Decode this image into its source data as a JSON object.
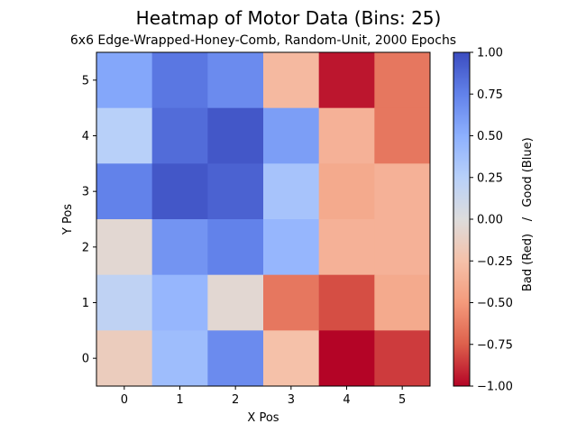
{
  "chart_data": {
    "type": "heatmap",
    "title": "Heatmap of Motor Data (Bins: 25)",
    "subtitle": "6x6 Edge-Wrapped-Honey-Comb, Random-Unit, 2000 Epochs",
    "xlabel": "X Pos",
    "ylabel": "Y Pos",
    "x_ticks": [
      "0",
      "1",
      "2",
      "3",
      "4",
      "5"
    ],
    "y_ticks": [
      "0",
      "1",
      "2",
      "3",
      "4",
      "5"
    ],
    "colorbar": {
      "label_low": "Bad (Red)",
      "label_sep": "/",
      "label_high": "Good (Blue)",
      "range": [
        -1.0,
        1.0
      ],
      "ticks": [
        "−1.00",
        "−0.75",
        "−0.50",
        "−0.25",
        "0.00",
        "0.25",
        "0.50",
        "0.75",
        "1.00"
      ],
      "colormap": "coolwarm_r"
    },
    "grid": false,
    "rows": [
      {
        "y": 5,
        "values": [
          0.55,
          0.8,
          0.7,
          -0.3,
          -0.95,
          -0.65
        ]
      },
      {
        "y": 4,
        "values": [
          0.25,
          0.85,
          0.95,
          0.6,
          -0.35,
          -0.65
        ]
      },
      {
        "y": 3,
        "values": [
          0.75,
          0.95,
          0.9,
          0.35,
          -0.4,
          -0.35
        ]
      },
      {
        "y": 2,
        "values": [
          -0.05,
          0.65,
          0.75,
          0.45,
          -0.35,
          -0.35
        ]
      },
      {
        "y": 1,
        "values": [
          0.2,
          0.45,
          -0.05,
          -0.65,
          -0.8,
          -0.4
        ]
      },
      {
        "y": 0,
        "values": [
          -0.15,
          0.4,
          0.7,
          -0.25,
          -1.0,
          -0.85
        ]
      }
    ]
  }
}
